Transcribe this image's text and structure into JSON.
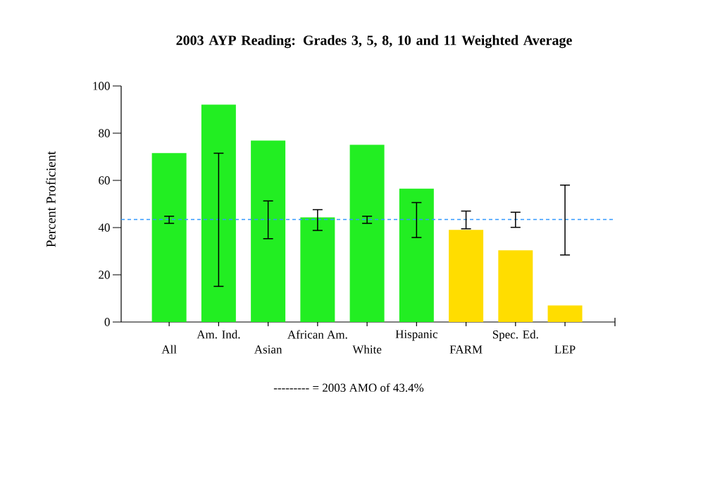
{
  "chart_data": {
    "type": "bar",
    "title": "2003 AYP Reading: Grades 3, 5, 8, 10 and 11 Weighted Average",
    "ylabel": "Percent Proficient",
    "categories": [
      "All",
      "Am. Ind.",
      "Asian",
      "African Am.",
      "White",
      "Hispanic",
      "FARM",
      "Spec. Ed.",
      "LEP"
    ],
    "values": [
      71.6,
      92.1,
      76.9,
      44.3,
      75.1,
      56.5,
      39.0,
      30.4,
      7.0
    ],
    "colors": [
      "#22ee22",
      "#22ee22",
      "#22ee22",
      "#22ee22",
      "#22ee22",
      "#22ee22",
      "#ffdd00",
      "#ffdd00",
      "#ffdd00"
    ],
    "errors": [
      [
        41.8,
        44.8
      ],
      [
        15.1,
        71.5
      ],
      [
        35.3,
        51.3
      ],
      [
        38.8,
        47.6
      ],
      [
        41.8,
        44.8
      ],
      [
        35.8,
        50.6
      ],
      [
        39.5,
        47.0
      ],
      [
        40.1,
        46.5
      ],
      [
        28.4,
        58.0
      ]
    ],
    "ylim": [
      0,
      100
    ],
    "yticks": [
      0,
      20,
      40,
      60,
      80,
      100
    ],
    "ref_lines": [
      {
        "axis": "y",
        "value": 43.4,
        "color": "#3399ff",
        "line_style": "dashed"
      }
    ],
    "annotations": [
      "--------- = 2003 AMO of 43.4%"
    ]
  }
}
